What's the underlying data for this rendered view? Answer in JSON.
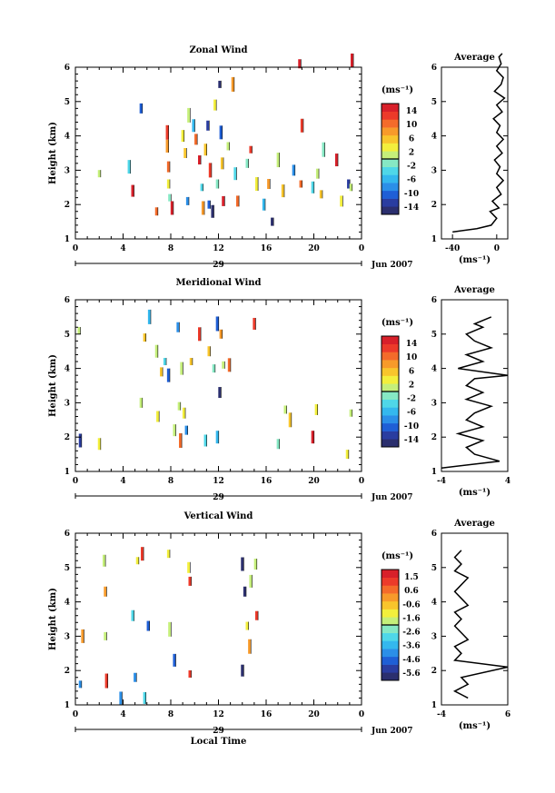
{
  "shared": {
    "date_label": "Jun 2007",
    "date_tick": "29",
    "x_axis_label": "Local Time",
    "unit_label": "(ms⁻¹)",
    "avg_x_label": "(ms⁻¹)",
    "avg_title": "Average",
    "y_axis_label": "Height (km)",
    "x_ticks": [
      "0",
      "4",
      "8",
      "12",
      "16",
      "20",
      "0"
    ],
    "y_ticks": [
      "1",
      "2",
      "3",
      "4",
      "5",
      "6"
    ]
  },
  "colorscale": [
    "#2b2f6e",
    "#2a3da0",
    "#1f5fd6",
    "#2b8fe8",
    "#34b8ee",
    "#4fd7e8",
    "#86e8c4",
    "#c5ef7a",
    "#f3ef3c",
    "#f8c52c",
    "#f79a2a",
    "#f46b2a",
    "#ec3a2a",
    "#d8202a"
  ],
  "chart_data": [
    {
      "type": "heatmap",
      "title": "Zonal Wind",
      "xlim": [
        0,
        24
      ],
      "ylim": [
        1,
        6
      ],
      "colorbar_ticks": [
        "14",
        "10",
        "6",
        "2",
        "-2",
        "-6",
        "-10",
        "-14"
      ],
      "colorbar_range": [
        -16,
        16
      ],
      "cells": [
        [
          2.0,
          2.9,
          0
        ],
        [
          4.5,
          3.1,
          -4
        ],
        [
          4.8,
          2.4,
          14
        ],
        [
          5.5,
          4.8,
          -10
        ],
        [
          6.8,
          1.8,
          10
        ],
        [
          7.7,
          4.1,
          12
        ],
        [
          7.7,
          3.7,
          8
        ],
        [
          7.8,
          3.1,
          10
        ],
        [
          7.8,
          2.6,
          4
        ],
        [
          7.9,
          2.2,
          -2
        ],
        [
          8.1,
          1.9,
          14
        ],
        [
          9.0,
          4.0,
          4
        ],
        [
          9.2,
          3.5,
          6
        ],
        [
          9.4,
          2.1,
          -8
        ],
        [
          9.5,
          4.6,
          2
        ],
        [
          9.9,
          4.3,
          -6
        ],
        [
          10.1,
          3.9,
          10
        ],
        [
          10.4,
          3.3,
          14
        ],
        [
          10.6,
          2.5,
          -4
        ],
        [
          10.7,
          1.9,
          8
        ],
        [
          10.9,
          3.6,
          6
        ],
        [
          11.1,
          4.3,
          -12
        ],
        [
          11.2,
          2.0,
          -10
        ],
        [
          11.3,
          3.0,
          12
        ],
        [
          11.5,
          1.8,
          -14
        ],
        [
          11.7,
          4.9,
          4
        ],
        [
          11.9,
          2.6,
          -2
        ],
        [
          12.1,
          5.5,
          -14
        ],
        [
          12.2,
          4.1,
          -10
        ],
        [
          12.3,
          3.2,
          6
        ],
        [
          12.4,
          2.1,
          14
        ],
        [
          12.8,
          3.7,
          2
        ],
        [
          13.2,
          5.5,
          8
        ],
        [
          13.4,
          2.9,
          -4
        ],
        [
          13.6,
          2.1,
          10
        ],
        [
          14.4,
          3.2,
          -2
        ],
        [
          14.7,
          3.6,
          12
        ],
        [
          15.2,
          2.6,
          4
        ],
        [
          15.8,
          2.0,
          -6
        ],
        [
          16.2,
          2.6,
          8
        ],
        [
          16.5,
          1.5,
          -14
        ],
        [
          17.0,
          3.3,
          2
        ],
        [
          17.4,
          2.4,
          6
        ],
        [
          18.3,
          3.0,
          -8
        ],
        [
          18.8,
          6.1,
          14
        ],
        [
          18.9,
          2.6,
          10
        ],
        [
          19.0,
          4.3,
          12
        ],
        [
          19.9,
          2.5,
          -4
        ],
        [
          20.3,
          2.9,
          2
        ],
        [
          20.6,
          2.3,
          6
        ],
        [
          20.8,
          3.6,
          -2
        ],
        [
          21.9,
          3.3,
          14
        ],
        [
          22.3,
          2.1,
          4
        ],
        [
          22.9,
          2.6,
          -12
        ],
        [
          23.1,
          2.5,
          0
        ],
        [
          23.2,
          6.2,
          14
        ]
      ],
      "average": {
        "xlim": [
          -50,
          10
        ],
        "x_ticks": [
          "-40",
          "0"
        ],
        "tick_values": [
          -40,
          0
        ],
        "profile": [
          [
            -40,
            1.2
          ],
          [
            -18,
            1.3
          ],
          [
            -5,
            1.4
          ],
          [
            0,
            1.6
          ],
          [
            -6,
            1.8
          ],
          [
            2,
            1.9
          ],
          [
            -4,
            2.1
          ],
          [
            4,
            2.3
          ],
          [
            0,
            2.5
          ],
          [
            6,
            2.7
          ],
          [
            0,
            2.9
          ],
          [
            3,
            3.1
          ],
          [
            -2,
            3.3
          ],
          [
            5,
            3.5
          ],
          [
            0,
            3.7
          ],
          [
            6,
            3.9
          ],
          [
            0,
            4.1
          ],
          [
            3,
            4.3
          ],
          [
            -3,
            4.5
          ],
          [
            5,
            4.7
          ],
          [
            0,
            4.9
          ],
          [
            7,
            5.1
          ],
          [
            -2,
            5.3
          ],
          [
            4,
            5.5
          ],
          [
            6,
            5.7
          ],
          [
            0,
            5.9
          ],
          [
            4,
            6.1
          ],
          [
            2,
            6.3
          ],
          [
            5,
            6.4
          ]
        ]
      }
    },
    {
      "type": "heatmap",
      "title": "Meridional Wind",
      "xlim": [
        0,
        24
      ],
      "ylim": [
        1,
        6
      ],
      "colorbar_ticks": [
        "14",
        "10",
        "6",
        "2",
        "-2",
        "-6",
        "-10",
        "-14"
      ],
      "colorbar_range": [
        -16,
        16
      ],
      "cells": [
        [
          0.3,
          5.1,
          0
        ],
        [
          0.4,
          1.9,
          -12
        ],
        [
          2.0,
          1.8,
          4
        ],
        [
          5.5,
          3.0,
          2
        ],
        [
          5.8,
          4.9,
          6
        ],
        [
          6.2,
          5.5,
          -6
        ],
        [
          6.8,
          4.5,
          0
        ],
        [
          6.9,
          2.6,
          4
        ],
        [
          7.2,
          3.9,
          6
        ],
        [
          7.5,
          4.2,
          -4
        ],
        [
          7.8,
          3.8,
          -10
        ],
        [
          8.3,
          2.2,
          2
        ],
        [
          8.6,
          5.2,
          -8
        ],
        [
          8.7,
          2.9,
          0
        ],
        [
          8.8,
          1.9,
          10
        ],
        [
          8.9,
          4.0,
          2
        ],
        [
          9.1,
          2.7,
          4
        ],
        [
          9.3,
          2.2,
          -8
        ],
        [
          9.7,
          4.2,
          6
        ],
        [
          10.4,
          5.0,
          12
        ],
        [
          10.9,
          1.9,
          -4
        ],
        [
          11.2,
          4.5,
          6
        ],
        [
          11.6,
          4.0,
          -2
        ],
        [
          11.9,
          5.3,
          -10
        ],
        [
          11.9,
          2.0,
          -6
        ],
        [
          12.1,
          3.3,
          -14
        ],
        [
          12.2,
          5.0,
          8
        ],
        [
          12.4,
          4.1,
          2
        ],
        [
          12.9,
          4.1,
          10
        ],
        [
          15.0,
          5.3,
          12
        ],
        [
          17.0,
          1.8,
          -2
        ],
        [
          17.6,
          2.8,
          0
        ],
        [
          18.0,
          2.5,
          6
        ],
        [
          19.9,
          2.0,
          14
        ],
        [
          20.2,
          2.8,
          4
        ],
        [
          22.8,
          1.5,
          4
        ],
        [
          23.1,
          2.7,
          2
        ]
      ],
      "average": {
        "xlim": [
          -4,
          4
        ],
        "x_ticks": [
          "-4",
          "4"
        ],
        "tick_values": [
          -4,
          4
        ],
        "profile": [
          [
            -4,
            1.1
          ],
          [
            3,
            1.3
          ],
          [
            0,
            1.5
          ],
          [
            -1,
            1.7
          ],
          [
            1,
            1.9
          ],
          [
            -2,
            2.1
          ],
          [
            1,
            2.3
          ],
          [
            -1,
            2.5
          ],
          [
            0,
            2.7
          ],
          [
            2,
            2.9
          ],
          [
            -1,
            3.1
          ],
          [
            1,
            3.3
          ],
          [
            -1,
            3.5
          ],
          [
            0,
            3.7
          ],
          [
            4,
            3.8
          ],
          [
            -2,
            4.0
          ],
          [
            1,
            4.2
          ],
          [
            -1,
            4.4
          ],
          [
            2,
            4.6
          ],
          [
            0,
            4.8
          ],
          [
            -1,
            5.0
          ],
          [
            1,
            5.2
          ],
          [
            0,
            5.3
          ],
          [
            2,
            5.5
          ]
        ]
      }
    },
    {
      "type": "heatmap",
      "title": "Vertical Wind",
      "xlim": [
        0,
        24
      ],
      "ylim": [
        1,
        6
      ],
      "colorbar_ticks": [
        "1.5",
        "0.6",
        "-0.6",
        "-1.6",
        "-2.6",
        "-3.6",
        "-4.6",
        "-5.6"
      ],
      "colorbar_range": [
        -6.2,
        2.0
      ],
      "cells": [
        [
          0.4,
          1.6,
          -4
        ],
        [
          0.6,
          3.0,
          0
        ],
        [
          2.4,
          5.2,
          -2
        ],
        [
          2.5,
          4.3,
          0
        ],
        [
          2.5,
          3.0,
          -2
        ],
        [
          2.6,
          1.7,
          1
        ],
        [
          3.8,
          1.2,
          -4
        ],
        [
          4.8,
          3.6,
          -3
        ],
        [
          5.0,
          1.8,
          -4
        ],
        [
          5.2,
          5.2,
          -1
        ],
        [
          5.6,
          5.4,
          1
        ],
        [
          5.8,
          1.2,
          -3
        ],
        [
          6.1,
          3.3,
          -5
        ],
        [
          7.8,
          5.4,
          -1
        ],
        [
          7.9,
          3.2,
          -2
        ],
        [
          8.3,
          2.3,
          -5
        ],
        [
          9.5,
          5.0,
          -1
        ],
        [
          9.6,
          4.6,
          1
        ],
        [
          9.6,
          1.9,
          1
        ],
        [
          14.0,
          5.1,
          -6
        ],
        [
          14.0,
          2.0,
          -6
        ],
        [
          14.2,
          4.3,
          -6
        ],
        [
          14.4,
          3.3,
          -1
        ],
        [
          14.6,
          2.7,
          0
        ],
        [
          14.7,
          4.6,
          -2
        ],
        [
          15.1,
          5.1,
          -2
        ],
        [
          15.2,
          3.6,
          1
        ]
      ],
      "average": {
        "xlim": [
          -4,
          6
        ],
        "x_ticks": [
          "-4",
          "6"
        ],
        "tick_values": [
          -4,
          6
        ],
        "profile": [
          [
            0,
            1.2
          ],
          [
            -2,
            1.4
          ],
          [
            0,
            1.6
          ],
          [
            -1,
            1.8
          ],
          [
            6,
            2.1
          ],
          [
            -2,
            2.3
          ],
          [
            -1,
            2.5
          ],
          [
            -2,
            2.7
          ],
          [
            0,
            2.9
          ],
          [
            -1,
            3.1
          ],
          [
            -2,
            3.3
          ],
          [
            -1,
            3.5
          ],
          [
            -2,
            3.7
          ],
          [
            0,
            3.9
          ],
          [
            -1,
            4.1
          ],
          [
            -2,
            4.3
          ],
          [
            -1,
            4.5
          ],
          [
            0,
            4.7
          ],
          [
            -2,
            4.9
          ],
          [
            -1,
            5.1
          ],
          [
            -2,
            5.3
          ],
          [
            -1,
            5.5
          ]
        ]
      }
    }
  ]
}
